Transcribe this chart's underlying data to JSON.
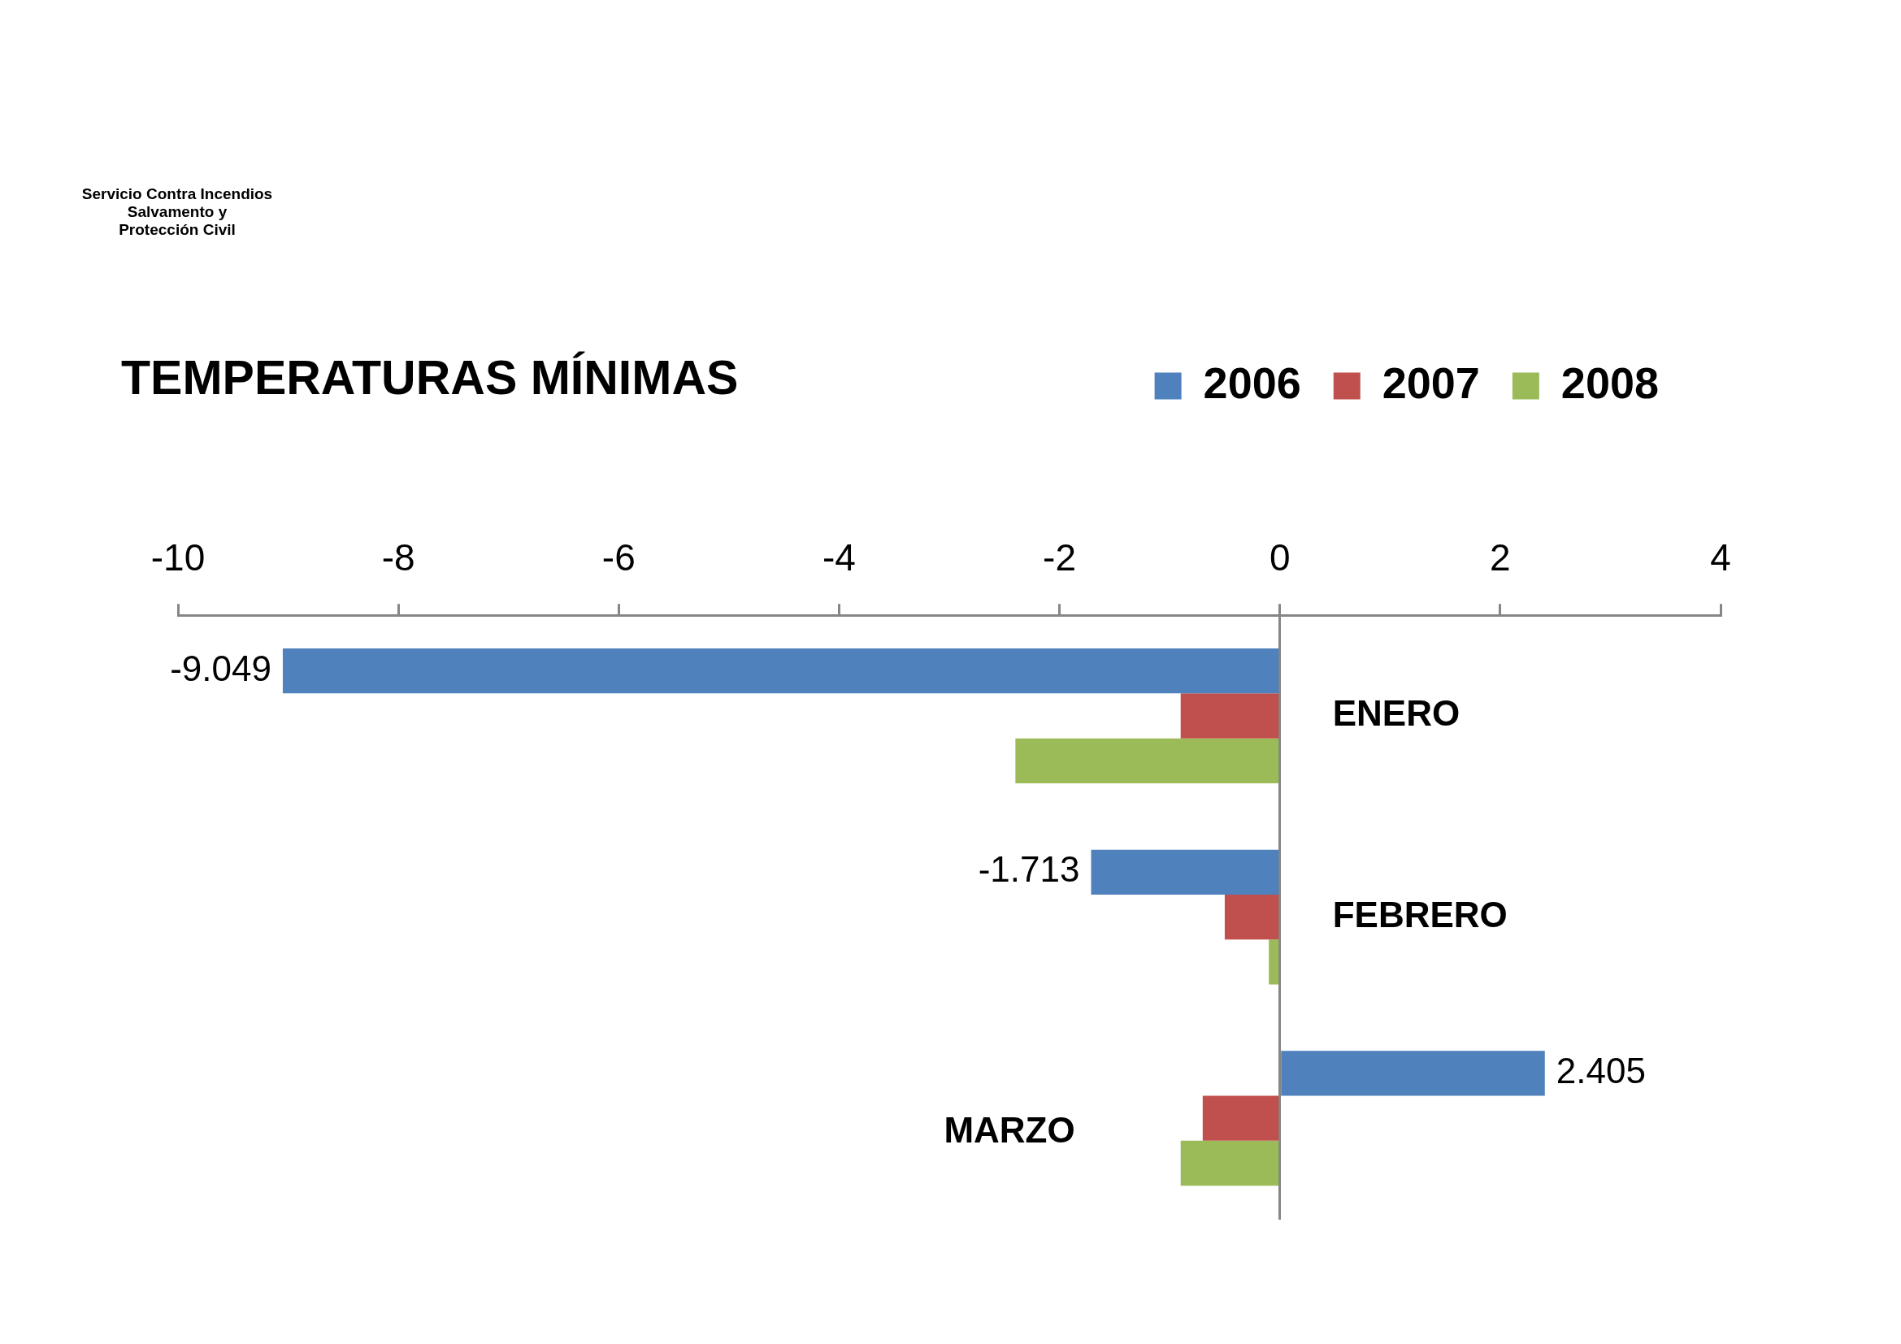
{
  "chart_data": {
    "type": "bar",
    "orientation": "horizontal",
    "title": "TEMPERATURAS MÍNIMAS",
    "annotations": [
      "Servicio Contra Incendios\nSalvamento y\nProtección Civil"
    ],
    "categories": [
      "ENERO",
      "FEBRERO",
      "MARZO"
    ],
    "series": [
      {
        "name": "2006",
        "color": "#4f81bd",
        "values": [
          -9.049,
          -1.713,
          2.405
        ],
        "value_labels": [
          "-9.049",
          "-1.713",
          "2.405"
        ]
      },
      {
        "name": "2007",
        "color": "#c0504d",
        "values": [
          -0.9,
          -0.5,
          -0.7
        ]
      },
      {
        "name": "2008",
        "color": "#9bbb59",
        "values": [
          -2.4,
          -0.1,
          -0.9
        ]
      }
    ],
    "xlim": [
      -10,
      4
    ],
    "xticks": [
      -10,
      -8,
      -6,
      -4,
      -2,
      0,
      2,
      4
    ],
    "legend": "top right"
  }
}
